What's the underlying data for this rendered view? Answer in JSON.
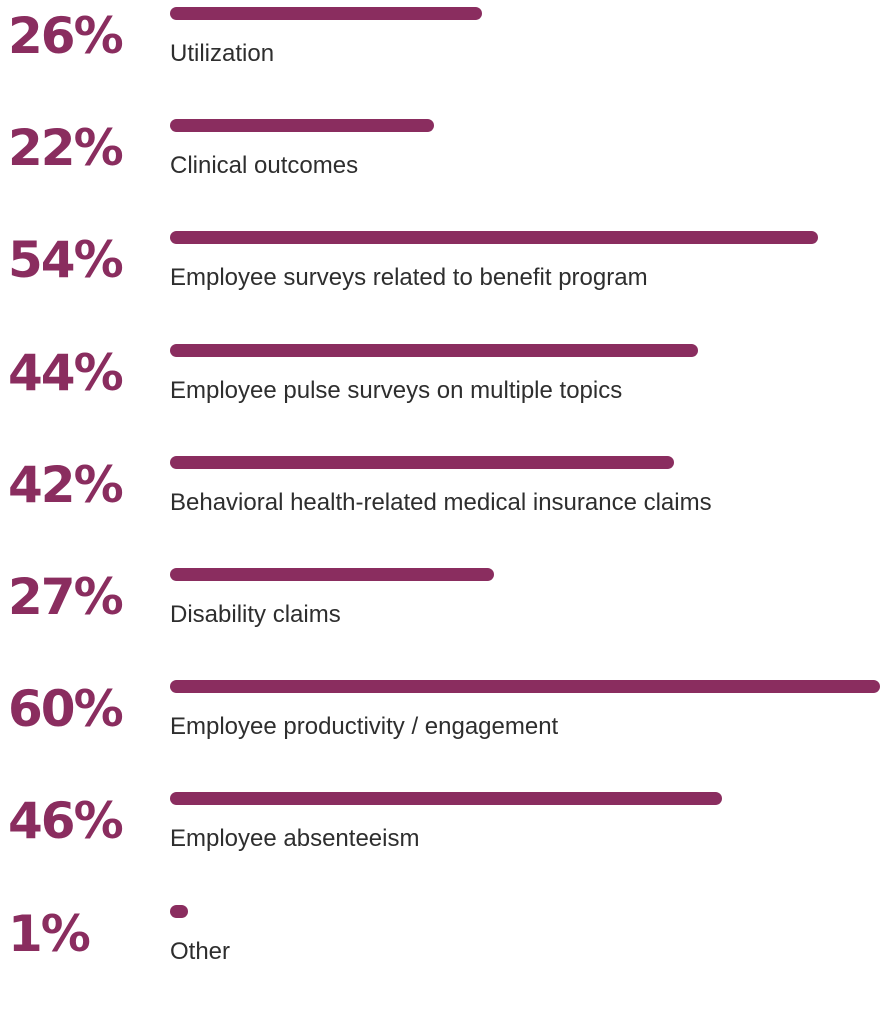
{
  "colors": {
    "accent": "#8a2d5f",
    "text": "#2e2e2e"
  },
  "chart_data": {
    "type": "bar",
    "orientation": "horizontal",
    "grid": false,
    "xlim": [
      0,
      60
    ],
    "categories": [
      "Utilization",
      "Clinical outcomes",
      "Employee surveys related to benefit program",
      "Employee pulse surveys on multiple topics",
      "Behavioral health-related medical insurance claims",
      "Disability claims",
      "Employee productivity / engagement",
      "Employee absenteeism",
      "Other"
    ],
    "values": [
      26,
      22,
      54,
      44,
      42,
      27,
      60,
      46,
      1
    ],
    "value_labels": [
      "26%",
      "22%",
      "54%",
      "44%",
      "42%",
      "27%",
      "60%",
      "46%",
      "1%"
    ]
  }
}
